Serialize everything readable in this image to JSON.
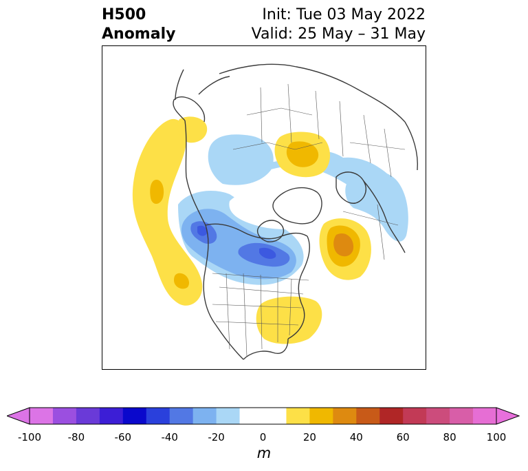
{
  "header": {
    "title_line1": "H500",
    "title_line2": "Anomaly",
    "init_text": "Init: Tue 03 May 2022",
    "valid_text": "Valid: 25 May – 31 May"
  },
  "colorbar": {
    "unit": "m",
    "ticks": [
      "-100",
      "-80",
      "-60",
      "-40",
      "-20",
      "0",
      "20",
      "40",
      "60",
      "80",
      "100"
    ],
    "bins": [
      {
        "from": -100,
        "to": -90,
        "color": "#dc74e6"
      },
      {
        "from": -90,
        "to": -80,
        "color": "#9b4fe0"
      },
      {
        "from": -80,
        "to": -70,
        "color": "#6a3ad8"
      },
      {
        "from": -70,
        "to": -60,
        "color": "#3c1ed6"
      },
      {
        "from": -60,
        "to": -50,
        "color": "#0a08cc"
      },
      {
        "from": -50,
        "to": -40,
        "color": "#2a40dc"
      },
      {
        "from": -40,
        "to": -30,
        "color": "#5278e4"
      },
      {
        "from": -30,
        "to": -20,
        "color": "#7db2f0"
      },
      {
        "from": -20,
        "to": -10,
        "color": "#aad7f6"
      },
      {
        "from": -10,
        "to": 10,
        "color": "#ffffff"
      },
      {
        "from": 10,
        "to": 20,
        "color": "#fde047"
      },
      {
        "from": 20,
        "to": 30,
        "color": "#f0b800"
      },
      {
        "from": 30,
        "to": 40,
        "color": "#de8a10"
      },
      {
        "from": 40,
        "to": 50,
        "color": "#c85a18"
      },
      {
        "from": 50,
        "to": 60,
        "color": "#b02626"
      },
      {
        "from": 60,
        "to": 70,
        "color": "#c23a56"
      },
      {
        "from": 70,
        "to": 80,
        "color": "#cc4c7c"
      },
      {
        "from": 80,
        "to": 90,
        "color": "#d85ea8"
      },
      {
        "from": 90,
        "to": 100,
        "color": "#e66ed4"
      }
    ],
    "extend_low_color": "#dc74e6",
    "extend_high_color": "#e870dc"
  },
  "map": {
    "projection": "polar stereographic, North America / Arctic",
    "anomaly_colors": {
      "pos_10": "#fde047",
      "pos_20": "#f0b800",
      "pos_30": "#de8a10",
      "neg_10": "#aad7f6",
      "neg_20": "#7db2f0",
      "neg_30": "#5278e4",
      "neg_40": "#2a40dc"
    },
    "coastline_color": "#3a3a3a"
  }
}
